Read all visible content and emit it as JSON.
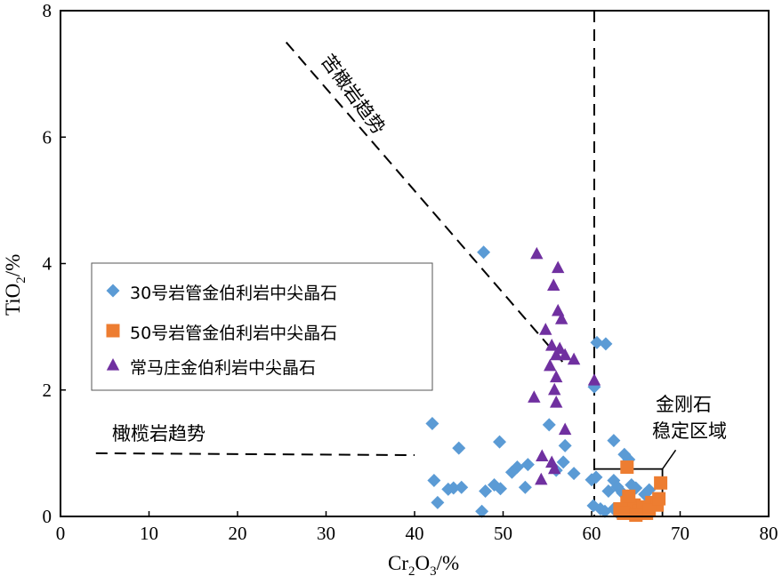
{
  "chart_data": {
    "type": "scatter",
    "xlabel": {
      "main": "Cr",
      "sub1": "2",
      "mid": "O",
      "sub2": "3",
      "tail": "/%"
    },
    "ylabel": {
      "main": "TiO",
      "sub": "2",
      "tail": "/%"
    },
    "xlim": [
      0,
      80
    ],
    "ylim": [
      0,
      8
    ],
    "xticks": [
      0,
      10,
      20,
      30,
      40,
      50,
      60,
      70,
      80
    ],
    "yticks": [
      0,
      2,
      4,
      6,
      8
    ],
    "grid": false,
    "legend_position": "left-middle",
    "colors": {
      "series1": "#5b9bd5",
      "series2": "#ed7d31",
      "series3": "#7030a0"
    },
    "series": [
      {
        "name": "30号岩管金伯利岩中尖晶石",
        "marker": "diamond",
        "points": [
          [
            47.8,
            4.18
          ],
          [
            60.6,
            2.75
          ],
          [
            61.6,
            2.73
          ],
          [
            60.3,
            2.05
          ],
          [
            42.0,
            1.47
          ],
          [
            55.2,
            1.45
          ],
          [
            49.6,
            1.18
          ],
          [
            57.0,
            1.12
          ],
          [
            45.0,
            1.08
          ],
          [
            62.5,
            1.2
          ],
          [
            63.7,
            0.98
          ],
          [
            64.2,
            0.9
          ],
          [
            52.8,
            0.82
          ],
          [
            51.6,
            0.78
          ],
          [
            56.8,
            0.86
          ],
          [
            51.0,
            0.7
          ],
          [
            56.0,
            0.73
          ],
          [
            58.0,
            0.68
          ],
          [
            42.2,
            0.57
          ],
          [
            43.8,
            0.43
          ],
          [
            44.4,
            0.45
          ],
          [
            45.3,
            0.46
          ],
          [
            48.0,
            0.4
          ],
          [
            49.0,
            0.5
          ],
          [
            49.7,
            0.44
          ],
          [
            52.5,
            0.46
          ],
          [
            42.6,
            0.22
          ],
          [
            47.6,
            0.08
          ],
          [
            60.0,
            0.58
          ],
          [
            60.5,
            0.62
          ],
          [
            62.5,
            0.57
          ],
          [
            61.9,
            0.4
          ],
          [
            62.9,
            0.47
          ],
          [
            63.5,
            0.37
          ],
          [
            64.5,
            0.5
          ],
          [
            65.0,
            0.45
          ],
          [
            66.0,
            0.35
          ],
          [
            60.2,
            0.17
          ],
          [
            61.0,
            0.12
          ],
          [
            61.5,
            0.08
          ],
          [
            62.5,
            0.12
          ],
          [
            63.0,
            0.05
          ],
          [
            63.9,
            0.18
          ],
          [
            64.5,
            0.1
          ],
          [
            66.5,
            0.42
          ],
          [
            65.8,
            0.1
          ]
        ]
      },
      {
        "name": "50号岩管金伯利岩中尖晶石",
        "marker": "square",
        "points": [
          [
            64.0,
            0.78
          ],
          [
            67.8,
            0.53
          ],
          [
            63.2,
            0.12
          ],
          [
            64.0,
            0.22
          ],
          [
            64.8,
            0.18
          ],
          [
            65.3,
            0.08
          ],
          [
            65.8,
            0.15
          ],
          [
            66.2,
            0.05
          ],
          [
            66.8,
            0.22
          ],
          [
            67.4,
            0.18
          ],
          [
            63.6,
            0.05
          ],
          [
            65.0,
            0.02
          ],
          [
            66.5,
            0.1
          ],
          [
            67.6,
            0.28
          ],
          [
            64.2,
            0.32
          ]
        ]
      },
      {
        "name": "常马庄金伯利岩中尖晶石",
        "marker": "triangle",
        "points": [
          [
            53.8,
            4.15
          ],
          [
            56.2,
            3.93
          ],
          [
            55.7,
            3.65
          ],
          [
            56.2,
            3.25
          ],
          [
            56.6,
            3.12
          ],
          [
            54.8,
            2.95
          ],
          [
            56.0,
            2.55
          ],
          [
            55.5,
            2.7
          ],
          [
            57.0,
            2.55
          ],
          [
            56.4,
            2.65
          ],
          [
            55.3,
            2.38
          ],
          [
            56.0,
            2.2
          ],
          [
            58.0,
            2.48
          ],
          [
            60.3,
            2.15
          ],
          [
            55.8,
            2.0
          ],
          [
            53.5,
            1.88
          ],
          [
            56.0,
            1.8
          ],
          [
            57.0,
            1.37
          ],
          [
            54.4,
            0.95
          ],
          [
            55.5,
            0.85
          ],
          [
            54.3,
            0.58
          ],
          [
            55.8,
            0.75
          ]
        ]
      }
    ],
    "annotations": {
      "komatiite_trend": "苦橄岩趋势",
      "olivine_trend": "橄榄岩趋势",
      "diamond_zone_line1": "金刚石",
      "diamond_zone_line2": "稳定区域"
    },
    "reference_lines": {
      "komatiite_trend": {
        "from": [
          25.5,
          7.5
        ],
        "to": [
          57.0,
          2.4
        ]
      },
      "olivine_trend": {
        "from": [
          4.0,
          1.0
        ],
        "to": [
          40.0,
          0.97
        ]
      },
      "diamond_boundary_x": 60.3,
      "diamond_box": {
        "x": [
          60.3,
          68.0
        ],
        "y": [
          0.0,
          0.75
        ]
      },
      "callout": {
        "from": [
          68.0,
          0.75
        ],
        "to": [
          69.5,
          1.05
        ]
      }
    }
  }
}
